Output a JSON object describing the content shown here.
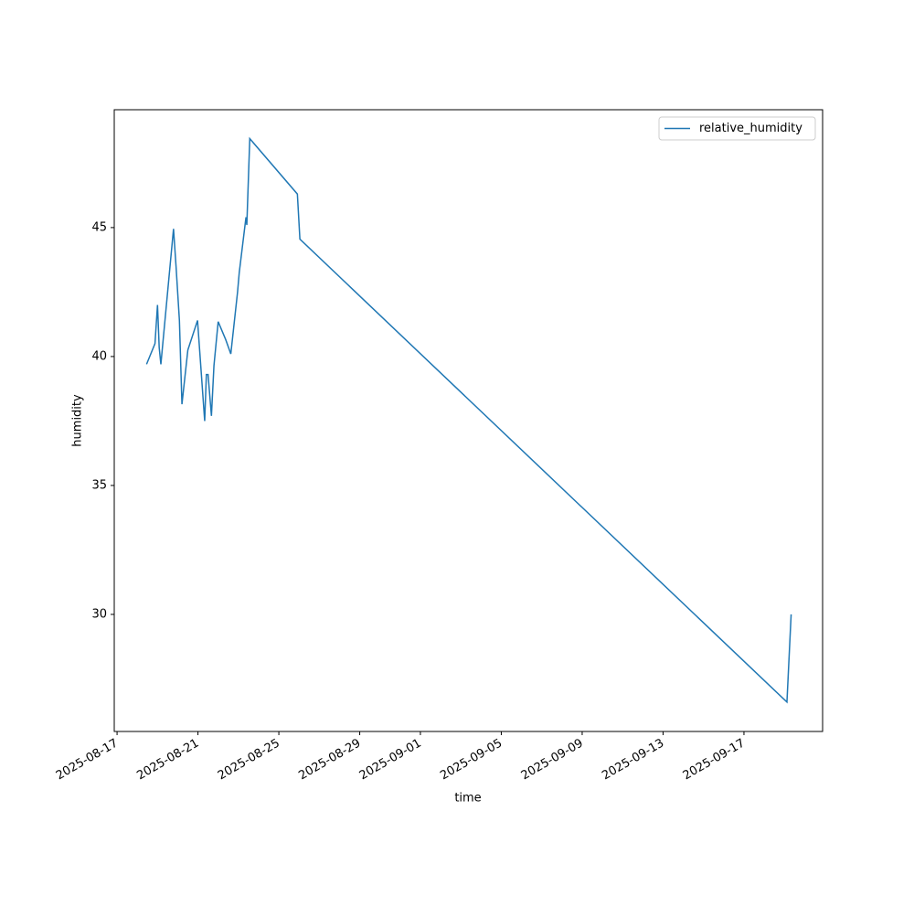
{
  "chart_data": {
    "type": "line",
    "x_label": "time",
    "y_label": "humidity",
    "x": [
      "2025-08-18T11:00",
      "2025-08-18T21:00",
      "2025-08-19T00:00",
      "2025-08-19T02:00",
      "2025-08-19T04:00",
      "2025-08-19T19:00",
      "2025-08-19T22:00",
      "2025-08-20T02:00",
      "2025-08-20T05:00",
      "2025-08-20T12:00",
      "2025-08-20T23:30",
      "2025-08-21T08:00",
      "2025-08-21T10:00",
      "2025-08-21T12:00",
      "2025-08-21T16:00",
      "2025-08-21T19:00",
      "2025-08-22T00:00",
      "2025-08-22T09:00",
      "2025-08-22T15:00",
      "2025-08-22T23:00",
      "2025-08-23T01:00",
      "2025-08-23T09:00",
      "2025-08-23T10:00",
      "2025-08-23T13:30",
      "2025-08-25T22:00",
      "2025-08-26T01:00",
      "2025-09-19T03:00",
      "2025-09-19T08:00"
    ],
    "series": [
      {
        "name": "relative_humidity",
        "color": "#1f77b4",
        "values": [
          39.7,
          40.5,
          42.0,
          40.35,
          39.7,
          44.95,
          43.5,
          41.4,
          38.15,
          40.25,
          41.4,
          37.5,
          39.3,
          39.3,
          37.7,
          39.65,
          41.35,
          40.65,
          40.1,
          42.5,
          43.25,
          45.4,
          45.1,
          48.45,
          46.3,
          44.55,
          26.6,
          30.0
        ]
      }
    ],
    "xlim": [
      "2025-08-16T20:40",
      "2025-09-20T21:20"
    ],
    "xticks": [
      "2025-08-17",
      "2025-08-21",
      "2025-08-25",
      "2025-08-29",
      "2025-09-01",
      "2025-09-05",
      "2025-09-09",
      "2025-09-13",
      "2025-09-17"
    ],
    "ylim": [
      25.46,
      49.57
    ],
    "yticks": [
      30,
      35,
      40,
      45
    ],
    "legend": "upper right"
  }
}
